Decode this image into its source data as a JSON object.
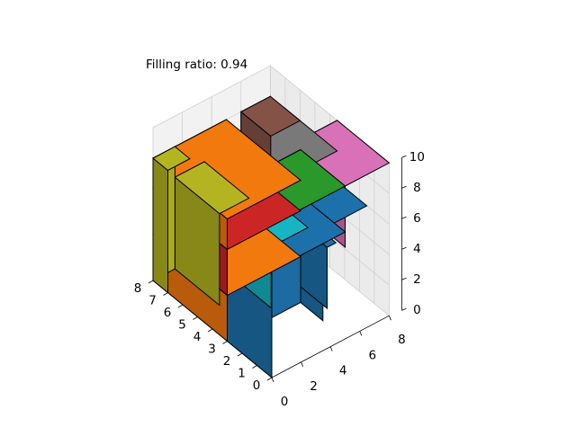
{
  "chart_data": {
    "type": "3d-bar",
    "title": "Filling ratio: 0.94",
    "xlabel": "",
    "ylabel": "",
    "zlabel": "",
    "xlim": [
      0,
      8
    ],
    "ylim": [
      0,
      8
    ],
    "zlim": [
      0,
      10
    ],
    "x_ticks": [
      "0",
      "1",
      "2",
      "3",
      "4",
      "5",
      "6",
      "7",
      "8"
    ],
    "y_ticks": [
      "0",
      "2",
      "4",
      "6",
      "8"
    ],
    "z_ticks": [
      "0",
      "2",
      "4",
      "6",
      "8",
      "10"
    ],
    "grid": true,
    "boxes": [
      {
        "x": [
          6,
          8
        ],
        "y": [
          6,
          8
        ],
        "z": [
          0,
          8
        ],
        "color": "#8c564b"
      },
      {
        "x": [
          2,
          8
        ],
        "y": [
          5.8,
          6.4
        ],
        "z": [
          0,
          4
        ],
        "color": "#1f77b4"
      },
      {
        "x": [
          1.5,
          8
        ],
        "y": [
          5,
          8
        ],
        "z": [
          0,
          6
        ],
        "color": "#1f77b4"
      },
      {
        "x": [
          0,
          3.5
        ],
        "y": [
          5,
          8
        ],
        "z": [
          6,
          10
        ],
        "color": "#e377c2"
      },
      {
        "x": [
          3.5,
          7
        ],
        "y": [
          5,
          8
        ],
        "z": [
          4,
          8
        ],
        "color": "#7f7f7f"
      },
      {
        "x": [
          3.5,
          7
        ],
        "y": [
          3.5,
          6
        ],
        "z": [
          0,
          4
        ],
        "color": "#17becf"
      },
      {
        "x": [
          0,
          3
        ],
        "y": [
          0,
          5
        ],
        "z": [
          7,
          10
        ],
        "color": "#2ca02c"
      },
      {
        "x": [
          0,
          3
        ],
        "y": [
          0,
          5
        ],
        "z": [
          0,
          7
        ],
        "color": "#1f77b4"
      },
      {
        "x": [
          3,
          8
        ],
        "y": [
          0,
          5
        ],
        "z": [
          0,
          3
        ],
        "color": "#ff7f0e"
      },
      {
        "x": [
          3,
          8
        ],
        "y": [
          0,
          5
        ],
        "z": [
          3,
          6
        ],
        "color": "#d62728"
      },
      {
        "x": [
          3,
          8
        ],
        "y": [
          0,
          5
        ],
        "z": [
          6,
          8
        ],
        "color": "#ff7f0e"
      },
      {
        "x": [
          5,
          8
        ],
        "y": [
          1.5,
          3.5
        ],
        "z": [
          0,
          6
        ],
        "color": "#bcbd22"
      },
      {
        "x": [
          7,
          8
        ],
        "y": [
          0,
          1.5
        ],
        "z": [
          0,
          8
        ],
        "color": "#bcbd22"
      }
    ]
  }
}
